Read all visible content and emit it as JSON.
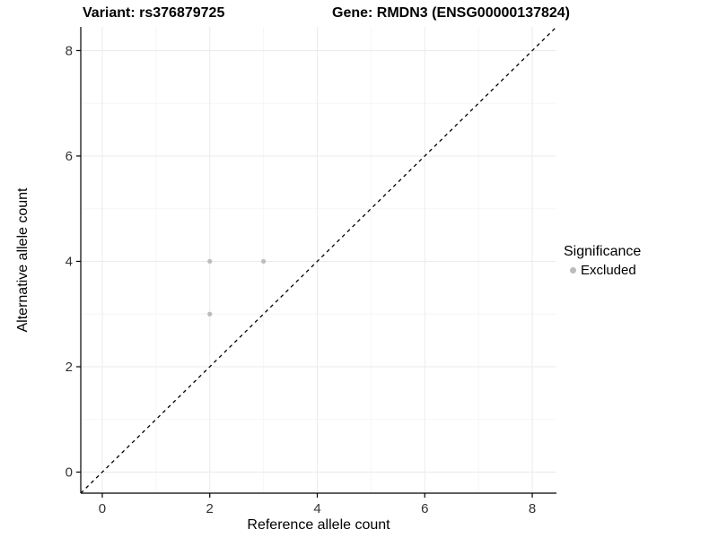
{
  "chart_data": {
    "type": "scatter",
    "title_left": "Variant: rs376879725",
    "title_right": "Gene: RMDN3 (ENSG00000137824)",
    "xlabel": "Reference allele count",
    "ylabel": "Alternative allele count",
    "xlim": [
      -0.4,
      8.45
    ],
    "ylim": [
      -0.4,
      8.45
    ],
    "x_ticks": [
      0,
      2,
      4,
      6,
      8
    ],
    "y_ticks": [
      0,
      2,
      4,
      6,
      8
    ],
    "x_minor_ticks": [
      1,
      3,
      5,
      7
    ],
    "y_minor_ticks": [
      1,
      3,
      5,
      7
    ],
    "grid": true,
    "legend_position": "right",
    "identity_line": {
      "style": "dashed",
      "equation": "y = x",
      "color": "#000000"
    },
    "series": [
      {
        "name": "Excluded",
        "color": "#bcbcbc",
        "points": [
          [
            2,
            4
          ],
          [
            3,
            4
          ],
          [
            2,
            3
          ]
        ]
      }
    ],
    "legend": {
      "title": "Significance",
      "items": [
        {
          "label": "Excluded",
          "color": "#bcbcbc"
        }
      ]
    },
    "colors": {
      "grid_major": "#ebebeb",
      "grid_minor": "#f6f6f6",
      "axis": "#000000",
      "tick_label": "#333333",
      "background": "#ffffff"
    }
  }
}
